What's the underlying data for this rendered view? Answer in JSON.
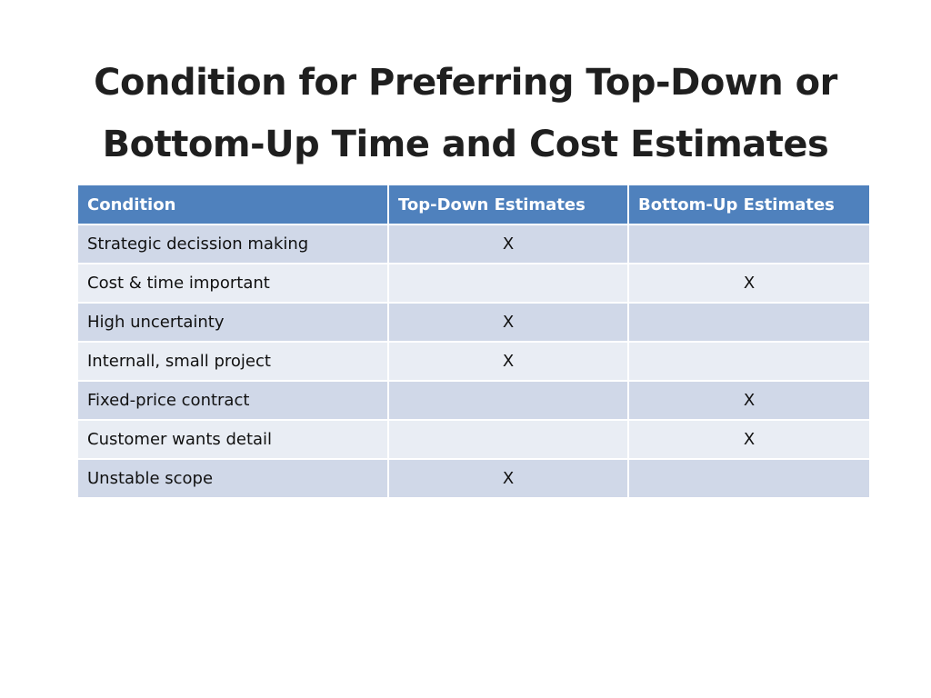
{
  "slide": {
    "title_line1": "Condition for Preferring Top-Down or",
    "title_line2": "Bottom-Up Time and Cost Estimates"
  },
  "table": {
    "headers": [
      "Condition",
      "Top-Down Estimates",
      "Bottom-Up Estimates"
    ],
    "rows": [
      {
        "condition": "Strategic decission making",
        "top_down": "X",
        "bottom_up": ""
      },
      {
        "condition": "Cost & time important",
        "top_down": "",
        "bottom_up": "X"
      },
      {
        "condition": "High uncertainty",
        "top_down": "X",
        "bottom_up": ""
      },
      {
        "condition": "Internall, small project",
        "top_down": "X",
        "bottom_up": ""
      },
      {
        "condition": "Fixed-price contract",
        "top_down": "",
        "bottom_up": "X"
      },
      {
        "condition": "Customer wants detail",
        "top_down": "",
        "bottom_up": "X"
      },
      {
        "condition": "Unstable scope",
        "top_down": "X",
        "bottom_up": ""
      }
    ]
  },
  "colors": {
    "header_bg": "#4f81bd",
    "row_odd_bg": "#d0d8e8",
    "row_even_bg": "#e9edf4"
  }
}
